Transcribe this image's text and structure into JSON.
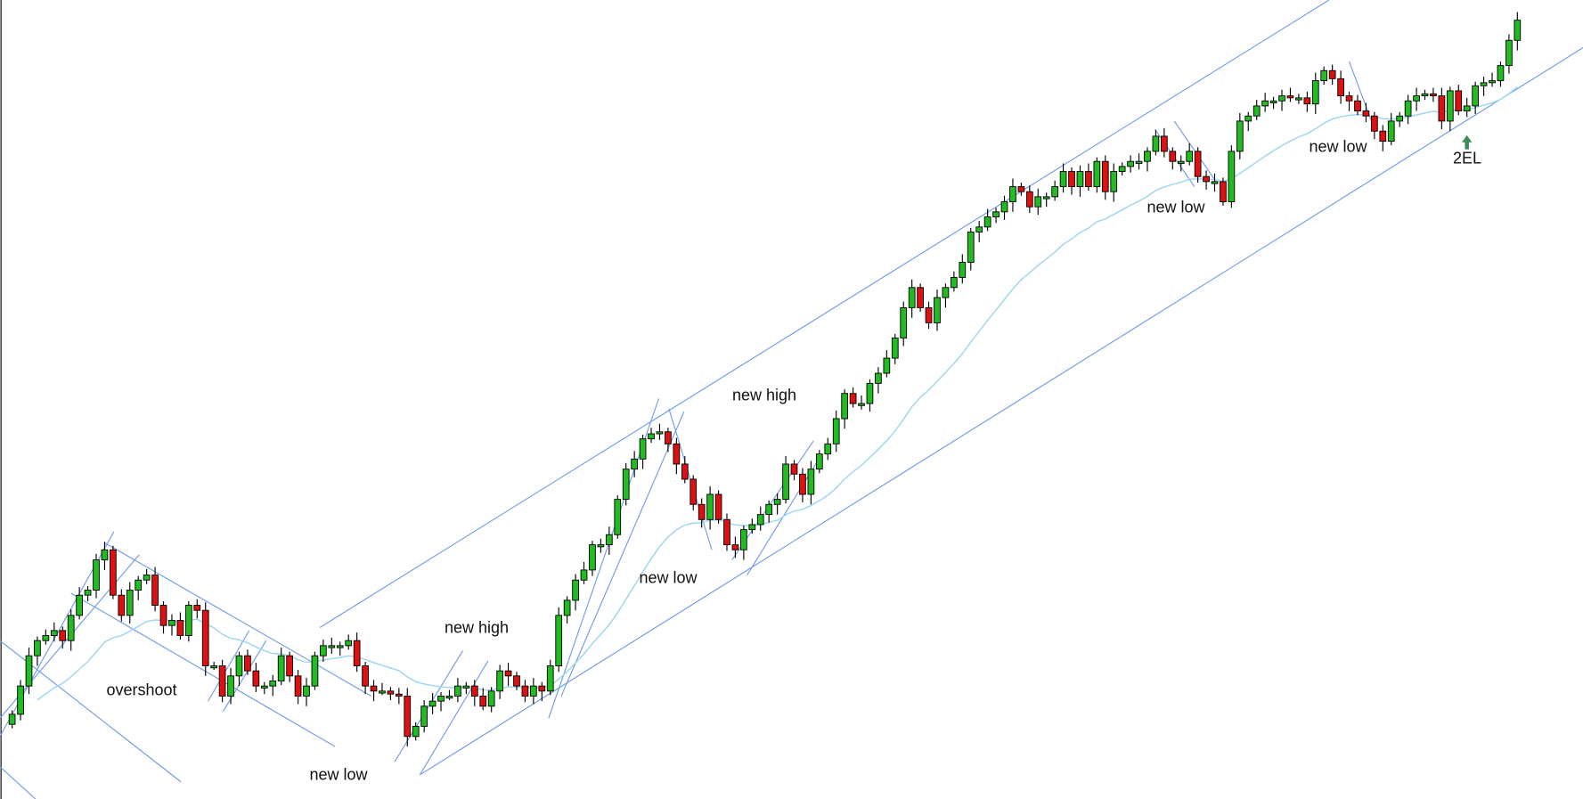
{
  "chart_data": {
    "type": "candlestick",
    "price_axis_shown": false,
    "grid": false,
    "colors": {
      "up": "#22bb22",
      "down": "#dd1111",
      "wick": "#000000",
      "trendline": "#6f9be8",
      "moving_average": "#9fd6f0",
      "arrow": "#3f8a5a"
    },
    "indicator": "moving average",
    "close": [
      92,
      120,
      150,
      165,
      170,
      175,
      165,
      190,
      210,
      215,
      245,
      255,
      210,
      190,
      215,
      225,
      230,
      200,
      180,
      185,
      170,
      200,
      195,
      140,
      140,
      110,
      130,
      150,
      135,
      120,
      120,
      125,
      150,
      130,
      110,
      120,
      150,
      160,
      160,
      160,
      165,
      140,
      120,
      115,
      115,
      112,
      110,
      70,
      80,
      100,
      105,
      110,
      110,
      120,
      120,
      110,
      100,
      115,
      135,
      130,
      120,
      110,
      120,
      115,
      140,
      190,
      205,
      225,
      235,
      260,
      260,
      270,
      305,
      335,
      345,
      365,
      370,
      372,
      360,
      340,
      325,
      300,
      285,
      310,
      285,
      260,
      255,
      275,
      280,
      290,
      300,
      305,
      340,
      330,
      310,
      335,
      350,
      360,
      385,
      410,
      400,
      400,
      420,
      430,
      445,
      465,
      495,
      515,
      495,
      480,
      505,
      515,
      525,
      540,
      570,
      575,
      585,
      590,
      600,
      615,
      610,
      595,
      605,
      605,
      615,
      630,
      615,
      630,
      615,
      640,
      610,
      630,
      635,
      640,
      640,
      650,
      665,
      650,
      640,
      640,
      650,
      625,
      620,
      620,
      600,
      650,
      680,
      685,
      695,
      700,
      700,
      705,
      703,
      703,
      697,
      720,
      730,
      722,
      705,
      700,
      690,
      685,
      670,
      660,
      680,
      685,
      700,
      705,
      707,
      705,
      680,
      710,
      690,
      695,
      715,
      718,
      720,
      735,
      760,
      780
    ],
    "trendlines": [
      [
        [
          36.6,
          178
        ],
        [
          156.6,
          800
        ]
      ],
      [
        [
          48.5,
          32
        ],
        [
          188.2,
          760
        ]
      ],
      [
        [
          -1.45,
          165
        ],
        [
          20.07,
          25
        ]
      ],
      [
        [
          -1.45,
          70
        ],
        [
          12.1,
          273
        ]
      ],
      [
        [
          -1.45,
          88
        ],
        [
          15.1,
          250
        ]
      ],
      [
        [
          -1.45,
          40
        ],
        [
          2.78,
          8
        ]
      ],
      [
        [
          11,
          262
        ],
        [
          42.7,
          110
        ]
      ],
      [
        [
          7,
          212
        ],
        [
          38.4,
          60
        ]
      ],
      [
        [
          23.3,
          105
        ],
        [
          28.2,
          175
        ]
      ],
      [
        [
          25.1,
          95
        ],
        [
          30.2,
          165
        ]
      ],
      [
        [
          45.5,
          45
        ],
        [
          53.6,
          155
        ]
      ],
      [
        [
          48.5,
          32
        ],
        [
          56.6,
          145
        ]
      ],
      [
        [
          63.8,
          88
        ],
        [
          76.9,
          405
        ]
      ],
      [
        [
          65.3,
          110
        ],
        [
          79.9,
          392
        ]
      ],
      [
        [
          78.1,
          395
        ],
        [
          83.2,
          255
        ]
      ],
      [
        [
          85.6,
          245
        ],
        [
          95.3,
          363
        ]
      ],
      [
        [
          87.4,
          230
        ],
        [
          96.3,
          350
        ]
      ],
      [
        [
          135.9,
          672
        ],
        [
          140.6,
          615
        ]
      ],
      [
        [
          138.2,
          680
        ],
        [
          143,
          622
        ]
      ],
      [
        [
          159,
          739
        ],
        [
          162.1,
          670
        ]
      ]
    ],
    "annotations": [
      "overshoot",
      "new low",
      "new high",
      "new low",
      "new high",
      "new low",
      "new low",
      "2EL"
    ]
  }
}
